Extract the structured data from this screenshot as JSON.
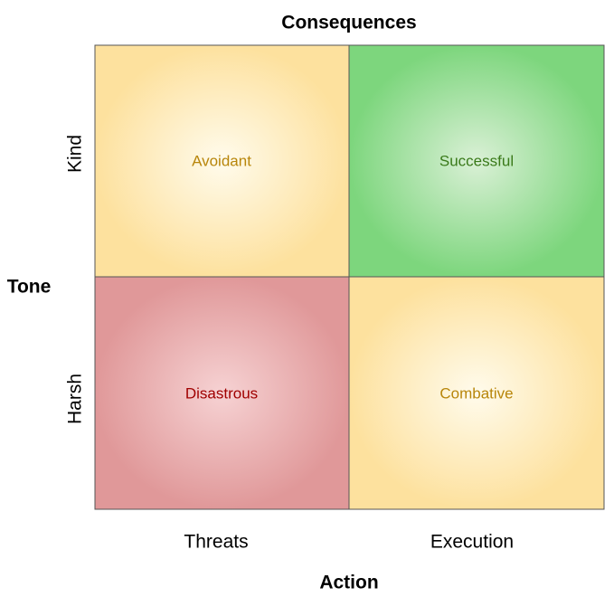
{
  "title": "Consequences",
  "y_axis": {
    "label": "Tone",
    "rows": [
      "Kind",
      "Harsh"
    ]
  },
  "x_axis": {
    "label": "Action",
    "columns": [
      "Threats",
      "Execution"
    ]
  },
  "cells": [
    [
      "Avoidant",
      "Successful"
    ],
    [
      "Disastrous",
      "Combative"
    ]
  ]
}
